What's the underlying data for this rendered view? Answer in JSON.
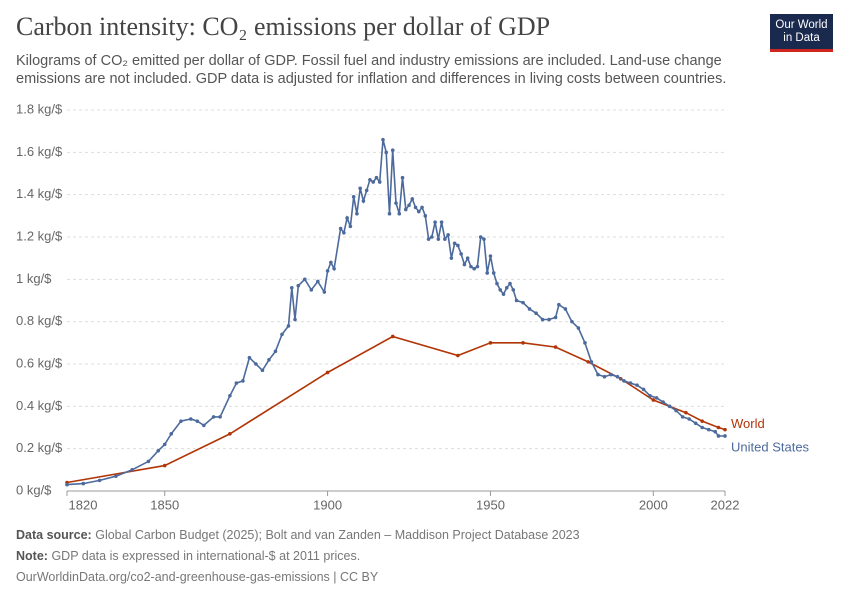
{
  "header": {
    "title": "Carbon intensity: CO₂ emissions per dollar of GDP",
    "subtitle": "Kilograms of CO₂ emitted per dollar of GDP. Fossil fuel and industry emissions are included. Land-use change emissions are not included. GDP data is adjusted for inflation and differences in living costs between countries.",
    "logo": [
      "Our World",
      "in Data"
    ]
  },
  "chart_data": {
    "type": "line",
    "xlim": [
      1820,
      2022
    ],
    "xticks": [
      1820,
      1850,
      1900,
      1950,
      2000,
      2022
    ],
    "ylim": [
      0,
      1.8
    ],
    "yticks": [
      {
        "value": 0,
        "label": "0 kg/$"
      },
      {
        "value": 0.2,
        "label": "0.2 kg/$"
      },
      {
        "value": 0.4,
        "label": "0.4 kg/$"
      },
      {
        "value": 0.6,
        "label": "0.6 kg/$"
      },
      {
        "value": 0.8,
        "label": "0.8 kg/$"
      },
      {
        "value": 1,
        "label": "1 kg/$"
      },
      {
        "value": 1.2,
        "label": "1.2 kg/$"
      },
      {
        "value": 1.4,
        "label": "1.4 kg/$"
      },
      {
        "value": 1.6,
        "label": "1.6 kg/$"
      },
      {
        "value": 1.8,
        "label": "1.8 kg/$"
      }
    ],
    "grid": true,
    "series": [
      {
        "name": "World",
        "color": "#b13507",
        "markers": true,
        "x": [
          1820,
          1850,
          1870,
          1900,
          1920,
          1940,
          1950,
          1960,
          1970,
          1980,
          1990,
          2000,
          2010,
          2015,
          2020,
          2022
        ],
        "values": [
          0.04,
          0.12,
          0.27,
          0.56,
          0.73,
          0.64,
          0.7,
          0.7,
          0.68,
          0.61,
          0.53,
          0.43,
          0.37,
          0.33,
          0.3,
          0.29
        ]
      },
      {
        "name": "United States",
        "color": "#4c6a9c",
        "markers": true,
        "x": [
          1820,
          1825,
          1830,
          1835,
          1840,
          1845,
          1848,
          1850,
          1852,
          1855,
          1858,
          1860,
          1862,
          1865,
          1867,
          1870,
          1872,
          1874,
          1876,
          1878,
          1880,
          1882,
          1884,
          1886,
          1888,
          1889,
          1890,
          1891,
          1893,
          1895,
          1897,
          1899,
          1900,
          1901,
          1902,
          1904,
          1905,
          1906,
          1907,
          1908,
          1909,
          1910,
          1911,
          1912,
          1913,
          1914,
          1915,
          1916,
          1917,
          1918,
          1919,
          1920,
          1921,
          1922,
          1923,
          1924,
          1925,
          1926,
          1927,
          1928,
          1929,
          1930,
          1931,
          1932,
          1933,
          1934,
          1935,
          1936,
          1937,
          1938,
          1939,
          1940,
          1941,
          1942,
          1943,
          1944,
          1945,
          1946,
          1947,
          1948,
          1949,
          1950,
          1951,
          1952,
          1953,
          1954,
          1955,
          1956,
          1957,
          1958,
          1960,
          1962,
          1964,
          1966,
          1968,
          1970,
          1971,
          1973,
          1975,
          1977,
          1979,
          1981,
          1983,
          1985,
          1987,
          1989,
          1991,
          1993,
          1995,
          1997,
          1999,
          2001,
          2003,
          2005,
          2007,
          2009,
          2011,
          2013,
          2015,
          2017,
          2019,
          2020,
          2022
        ],
        "values": [
          0.03,
          0.035,
          0.05,
          0.07,
          0.1,
          0.14,
          0.19,
          0.22,
          0.27,
          0.33,
          0.34,
          0.33,
          0.31,
          0.35,
          0.35,
          0.45,
          0.51,
          0.52,
          0.63,
          0.6,
          0.57,
          0.62,
          0.66,
          0.74,
          0.78,
          0.96,
          0.81,
          0.97,
          1.0,
          0.95,
          0.99,
          0.94,
          1.04,
          1.08,
          1.05,
          1.24,
          1.22,
          1.29,
          1.25,
          1.39,
          1.31,
          1.43,
          1.37,
          1.42,
          1.47,
          1.46,
          1.48,
          1.46,
          1.66,
          1.6,
          1.31,
          1.61,
          1.36,
          1.31,
          1.48,
          1.33,
          1.35,
          1.38,
          1.34,
          1.32,
          1.34,
          1.3,
          1.19,
          1.2,
          1.27,
          1.19,
          1.27,
          1.19,
          1.21,
          1.1,
          1.17,
          1.16,
          1.12,
          1.07,
          1.1,
          1.06,
          1.05,
          1.06,
          1.2,
          1.19,
          1.03,
          1.11,
          1.03,
          0.98,
          0.95,
          0.93,
          0.96,
          0.98,
          0.95,
          0.9,
          0.89,
          0.86,
          0.84,
          0.81,
          0.81,
          0.82,
          0.88,
          0.86,
          0.8,
          0.77,
          0.7,
          0.61,
          0.55,
          0.54,
          0.55,
          0.54,
          0.52,
          0.51,
          0.5,
          0.48,
          0.45,
          0.44,
          0.42,
          0.4,
          0.38,
          0.35,
          0.34,
          0.32,
          0.3,
          0.29,
          0.28,
          0.26,
          0.26
        ]
      }
    ]
  },
  "footer": {
    "source_label": "Data source:",
    "source": "Global Carbon Budget (2025); Bolt and van Zanden – Maddison Project Database 2023",
    "note_label": "Note:",
    "note": "GDP data is expressed in international-$ at 2011 prices.",
    "url": "OurWorldinData.org/co2-and-greenhouse-gas-emissions | CC BY"
  }
}
